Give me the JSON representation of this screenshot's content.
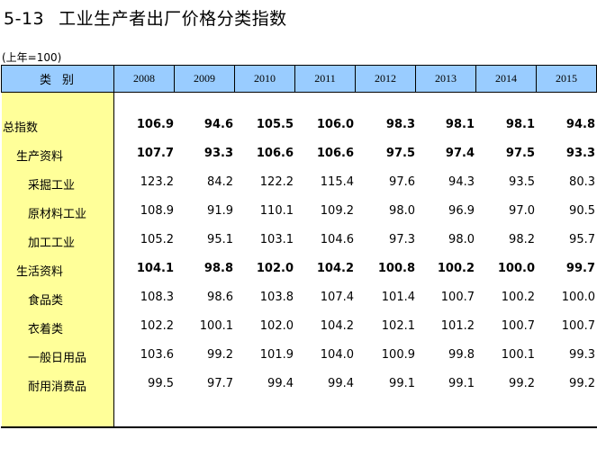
{
  "title": {
    "number": "5-13",
    "text": "工业生产者出厂价格分类指数"
  },
  "unit": "(上年=100)",
  "header": {
    "category": "类别",
    "years": [
      "2008",
      "2009",
      "2010",
      "2011",
      "2012",
      "2013",
      "2014",
      "2015"
    ]
  },
  "rows": [
    {
      "label": "总指数",
      "bold": true,
      "values": [
        "106.9",
        "94.6",
        "105.5",
        "106.0",
        "98.3",
        "98.1",
        "98.1",
        "94.8"
      ]
    },
    {
      "label": "生产资料",
      "bold": true,
      "values": [
        "107.7",
        "93.3",
        "106.6",
        "106.6",
        "97.5",
        "97.4",
        "97.5",
        "93.3"
      ]
    },
    {
      "label": "采掘工业",
      "bold": false,
      "values": [
        "123.2",
        "84.2",
        "122.2",
        "115.4",
        "97.6",
        "94.3",
        "93.5",
        "80.3"
      ]
    },
    {
      "label": "原材料工业",
      "bold": false,
      "values": [
        "108.9",
        "91.9",
        "110.1",
        "109.2",
        "98.0",
        "96.9",
        "97.0",
        "90.5"
      ]
    },
    {
      "label": "加工工业",
      "bold": false,
      "values": [
        "105.2",
        "95.1",
        "103.1",
        "104.6",
        "97.3",
        "98.0",
        "98.2",
        "95.7"
      ]
    },
    {
      "label": "生活资料",
      "bold": true,
      "values": [
        "104.1",
        "98.8",
        "102.0",
        "104.2",
        "100.8",
        "100.2",
        "100.0",
        "99.7"
      ]
    },
    {
      "label": "食品类",
      "bold": false,
      "values": [
        "108.3",
        "98.6",
        "103.8",
        "107.4",
        "101.4",
        "100.7",
        "100.2",
        "100.0"
      ]
    },
    {
      "label": "衣着类",
      "bold": false,
      "values": [
        "102.2",
        "100.1",
        "102.0",
        "104.2",
        "102.1",
        "101.2",
        "100.7",
        "100.7"
      ]
    },
    {
      "label": "一般日用品",
      "bold": false,
      "values": [
        "103.6",
        "99.2",
        "101.9",
        "104.0",
        "100.9",
        "99.8",
        "100.1",
        "99.3"
      ]
    },
    {
      "label": "耐用消费品",
      "bold": false,
      "values": [
        "99.5",
        "97.7",
        "99.4",
        "99.4",
        "99.1",
        "99.1",
        "99.2",
        "99.2"
      ]
    }
  ]
}
